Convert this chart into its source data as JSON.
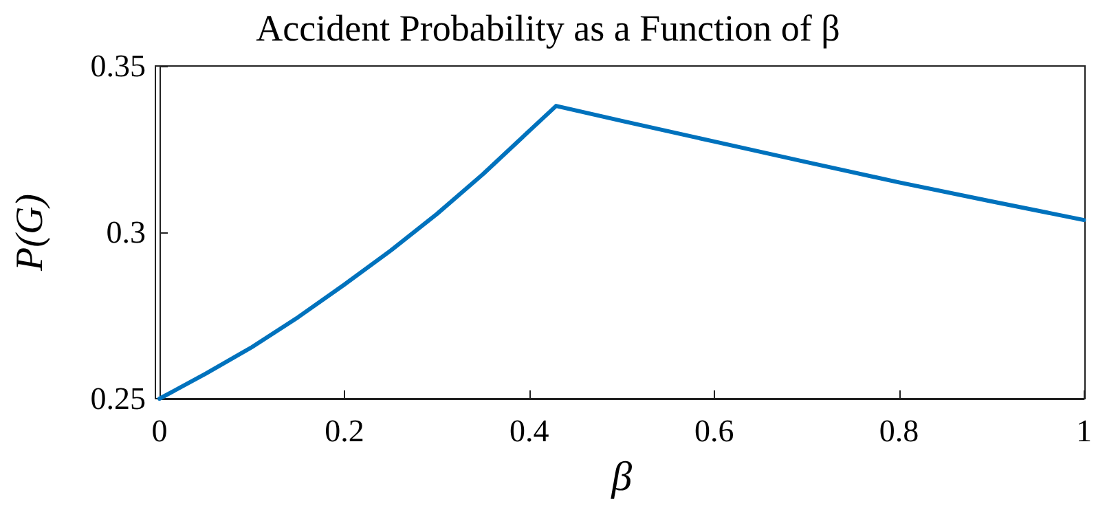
{
  "chart_data": {
    "type": "line",
    "title": "Accident Probability as a Function of β",
    "xlabel": "β",
    "ylabel": "P(G)",
    "x": [
      0,
      0.05,
      0.1,
      0.15,
      0.2,
      0.25,
      0.3,
      0.35,
      0.4,
      0.429,
      0.5,
      0.6,
      0.7,
      0.8,
      0.9,
      1
    ],
    "series": [
      {
        "color": "#0072bd",
        "values": [
          0.25,
          0.2575,
          0.2655,
          0.2745,
          0.2843,
          0.2945,
          0.3055,
          0.3175,
          0.3305,
          0.338,
          0.3335,
          0.3273,
          0.3211,
          0.315,
          0.3093,
          0.3037
        ]
      }
    ],
    "xlim": [
      0,
      1
    ],
    "ylim": [
      0.25,
      0.35
    ],
    "xticks": [
      0,
      0.2,
      0.4,
      0.6,
      0.8,
      1
    ],
    "yticks": [
      0.25,
      0.3,
      0.35
    ],
    "grid": false,
    "marker": "none",
    "line_style": "solid"
  }
}
